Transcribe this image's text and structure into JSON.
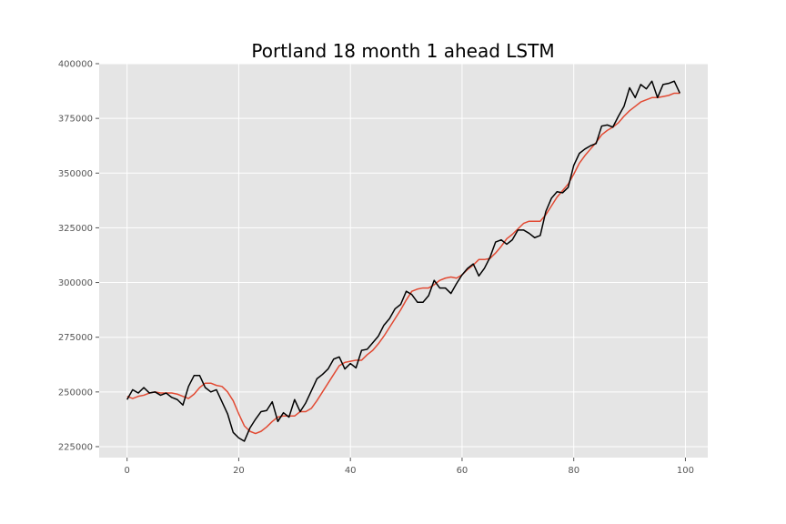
{
  "chart_data": {
    "type": "line",
    "title": "Portland 18 month 1 ahead LSTM",
    "xlabel": "",
    "ylabel": "",
    "xlim": [
      -5,
      104
    ],
    "ylim": [
      220000,
      400000
    ],
    "x_ticks": [
      0,
      20,
      40,
      60,
      80,
      100
    ],
    "x_tick_labels": [
      "0",
      "20",
      "40",
      "60",
      "80",
      "100"
    ],
    "y_ticks": [
      225000,
      250000,
      275000,
      300000,
      325000,
      350000,
      375000,
      400000
    ],
    "y_tick_labels": [
      "225000",
      "250000",
      "275000",
      "300000",
      "325000",
      "350000",
      "375000",
      "400000"
    ],
    "grid": true,
    "legend": "none",
    "colors": {
      "background": "#e5e5e5",
      "grid": "#ffffff",
      "actual": "#000000",
      "predicted": "#e24a33"
    },
    "series": [
      {
        "color": "#000000",
        "values": [
          246500,
          251000,
          249500,
          252000,
          249500,
          250000,
          248500,
          249500,
          247500,
          246500,
          244000,
          252500,
          257500,
          257500,
          252000,
          250000,
          251000,
          245500,
          240000,
          231500,
          229000,
          227500,
          233500,
          237500,
          241000,
          241500,
          245500,
          236500,
          240500,
          238500,
          246500,
          241000,
          245000,
          250500,
          256000,
          258000,
          260500,
          265000,
          266000,
          260500,
          263000,
          261000,
          269000,
          269500,
          272500,
          275500,
          280500,
          283500,
          288000,
          290000,
          296000,
          294500,
          291000,
          291000,
          294000,
          301000,
          297500,
          297500,
          295000,
          299500,
          303500,
          306500,
          308500,
          303000,
          306500,
          311500,
          318500,
          319500,
          317500,
          319500,
          324000,
          324000,
          322500,
          320500,
          321500,
          332500,
          338500,
          341500,
          341000,
          343500,
          353500,
          359000,
          361000,
          362500,
          363500,
          371500,
          372000,
          371000,
          376000,
          380500,
          389000,
          384500,
          390500,
          388500,
          392000,
          384500,
          390500,
          391000,
          392000,
          386500
        ]
      },
      {
        "color": "#e24a33",
        "values": [
          248000,
          247000,
          248000,
          248500,
          249500,
          250000,
          249500,
          249500,
          249500,
          249000,
          248000,
          247000,
          249000,
          252000,
          254000,
          254000,
          253000,
          252500,
          250000,
          246000,
          240000,
          234500,
          232000,
          231000,
          232000,
          234000,
          236500,
          238500,
          239000,
          239000,
          239000,
          241000,
          241000,
          242500,
          246000,
          250000,
          254000,
          258000,
          262000,
          263500,
          264000,
          264500,
          264500,
          267000,
          269000,
          272000,
          275500,
          279500,
          283500,
          287500,
          292000,
          296000,
          297000,
          297500,
          297500,
          299000,
          301000,
          302000,
          302500,
          302000,
          303500,
          306000,
          308000,
          310500,
          310500,
          311000,
          313500,
          316500,
          320000,
          322000,
          324500,
          327000,
          328000,
          328000,
          328000,
          331000,
          335000,
          339000,
          342000,
          345000,
          349500,
          354500,
          358000,
          361000,
          364000,
          367500,
          369500,
          371000,
          373000,
          376000,
          378500,
          380500,
          382500,
          383500,
          384500,
          384500,
          385000,
          385500,
          386500,
          386500
        ]
      }
    ]
  }
}
